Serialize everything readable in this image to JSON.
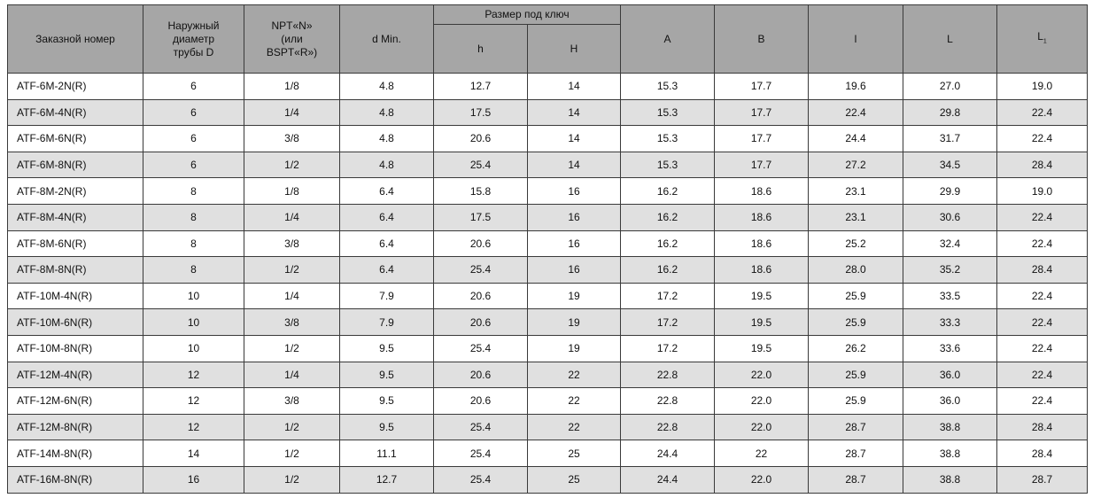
{
  "header": {
    "order_number": "Заказной номер",
    "outer_diameter": "Наружный диаметр трубы D",
    "thread": "NPT«N» (или BSPT«R»)",
    "d_min": "d Min.",
    "wrench_size": "Размер под ключ",
    "h": "h",
    "H": "H",
    "A": "A",
    "B": "B",
    "l": "l",
    "L": "L",
    "L1": "L",
    "L1_sub": "1"
  },
  "colors": {
    "header_bg": "#a6a6a6",
    "alt_row_bg": "#e0e0e0",
    "border": "#3a3a3a"
  },
  "rows": [
    [
      "ATF-6M-2N(R)",
      "6",
      "1/8",
      "4.8",
      "12.7",
      "14",
      "15.3",
      "17.7",
      "19.6",
      "27.0",
      "19.0"
    ],
    [
      "ATF-6M-4N(R)",
      "6",
      "1/4",
      "4.8",
      "17.5",
      "14",
      "15.3",
      "17.7",
      "22.4",
      "29.8",
      "22.4"
    ],
    [
      "ATF-6M-6N(R)",
      "6",
      "3/8",
      "4.8",
      "20.6",
      "14",
      "15.3",
      "17.7",
      "24.4",
      "31.7",
      "22.4"
    ],
    [
      "ATF-6M-8N(R)",
      "6",
      "1/2",
      "4.8",
      "25.4",
      "14",
      "15.3",
      "17.7",
      "27.2",
      "34.5",
      "28.4"
    ],
    [
      "ATF-8M-2N(R)",
      "8",
      "1/8",
      "6.4",
      "15.8",
      "16",
      "16.2",
      "18.6",
      "23.1",
      "29.9",
      "19.0"
    ],
    [
      "ATF-8M-4N(R)",
      "8",
      "1/4",
      "6.4",
      "17.5",
      "16",
      "16.2",
      "18.6",
      "23.1",
      "30.6",
      "22.4"
    ],
    [
      "ATF-8M-6N(R)",
      "8",
      "3/8",
      "6.4",
      "20.6",
      "16",
      "16.2",
      "18.6",
      "25.2",
      "32.4",
      "22.4"
    ],
    [
      "ATF-8M-8N(R)",
      "8",
      "1/2",
      "6.4",
      "25.4",
      "16",
      "16.2",
      "18.6",
      "28.0",
      "35.2",
      "28.4"
    ],
    [
      "ATF-10M-4N(R)",
      "10",
      "1/4",
      "7.9",
      "20.6",
      "19",
      "17.2",
      "19.5",
      "25.9",
      "33.5",
      "22.4"
    ],
    [
      "ATF-10M-6N(R)",
      "10",
      "3/8",
      "7.9",
      "20.6",
      "19",
      "17.2",
      "19.5",
      "25.9",
      "33.3",
      "22.4"
    ],
    [
      "ATF-10M-8N(R)",
      "10",
      "1/2",
      "9.5",
      "25.4",
      "19",
      "17.2",
      "19.5",
      "26.2",
      "33.6",
      "22.4"
    ],
    [
      "ATF-12M-4N(R)",
      "12",
      "1/4",
      "9.5",
      "20.6",
      "22",
      "22.8",
      "22.0",
      "25.9",
      "36.0",
      "22.4"
    ],
    [
      "ATF-12M-6N(R)",
      "12",
      "3/8",
      "9.5",
      "20.6",
      "22",
      "22.8",
      "22.0",
      "25.9",
      "36.0",
      "22.4"
    ],
    [
      "ATF-12M-8N(R)",
      "12",
      "1/2",
      "9.5",
      "25.4",
      "22",
      "22.8",
      "22.0",
      "28.7",
      "38.8",
      "28.4"
    ],
    [
      "ATF-14M-8N(R)",
      "14",
      "1/2",
      "11.1",
      "25.4",
      "25",
      "24.4",
      "22",
      "28.7",
      "38.8",
      "28.4"
    ],
    [
      "ATF-16M-8N(R)",
      "16",
      "1/2",
      "12.7",
      "25.4",
      "25",
      "24.4",
      "22.0",
      "28.7",
      "38.8",
      "28.7"
    ]
  ]
}
